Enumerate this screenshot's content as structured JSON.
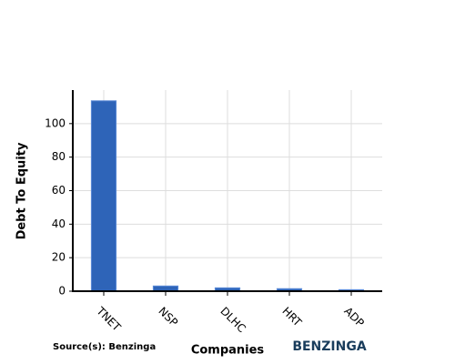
{
  "chart_data": {
    "type": "bar",
    "x_label": "Companies",
    "y_label": "Debt To Equity",
    "source": "Source(s): Benzinga",
    "brand": "BENZINGA",
    "categories": [
      "TNET",
      "NSP",
      "DLHC",
      "HRT",
      "ADP"
    ],
    "values": [
      113.6,
      3.1,
      2.0,
      1.5,
      0.9
    ],
    "color": "#2e64b8",
    "ylim": [
      0,
      120
    ],
    "yticks": [
      0,
      20,
      40,
      60,
      80,
      100
    ],
    "grid": true
  }
}
